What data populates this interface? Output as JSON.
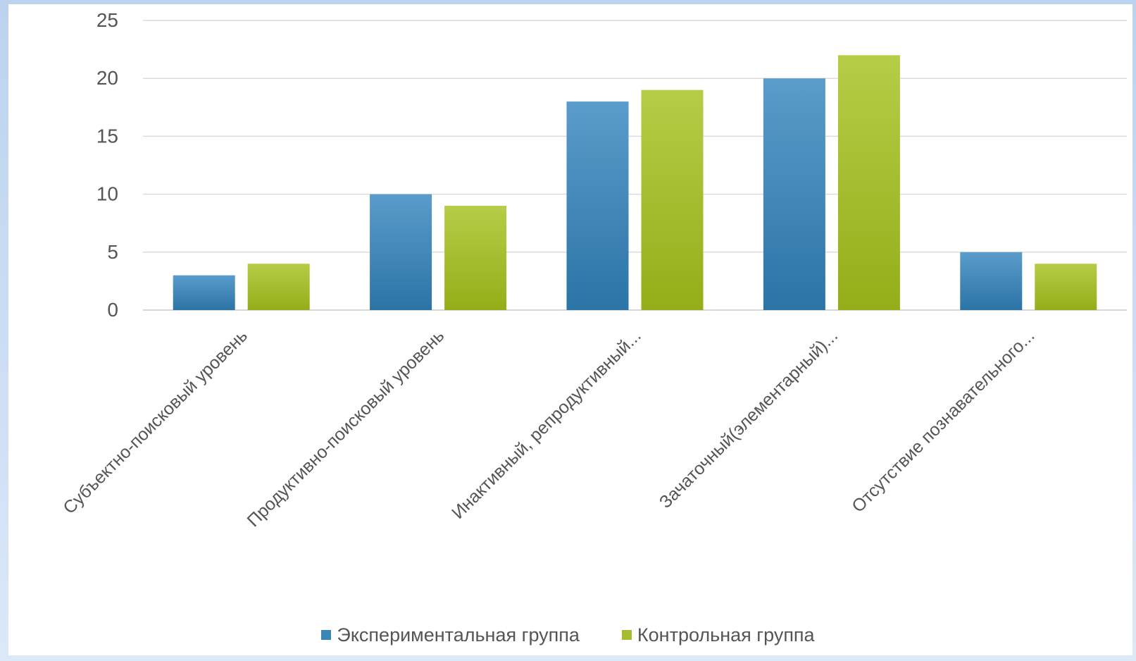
{
  "chart_data": {
    "type": "bar",
    "categories": [
      "Субъектно-поисковый уровень",
      "Продуктивно-поисковый уровень",
      "Инактивный, репродуктивный...",
      "Зачаточный(элементарный)...",
      "Отсутствие познавательного..."
    ],
    "series": [
      {
        "name": "Экспериментальная группа",
        "values": [
          3,
          10,
          18,
          20,
          5
        ],
        "color": "#3a86b4"
      },
      {
        "name": "Контрольная группа",
        "values": [
          4,
          9,
          19,
          22,
          4
        ],
        "color": "#a3bd2c"
      }
    ],
    "y_ticks": [
      "0",
      "5",
      "10",
      "15",
      "20",
      "25"
    ],
    "ylim": [
      0,
      25
    ],
    "grid": true,
    "legend_position": "bottom"
  }
}
